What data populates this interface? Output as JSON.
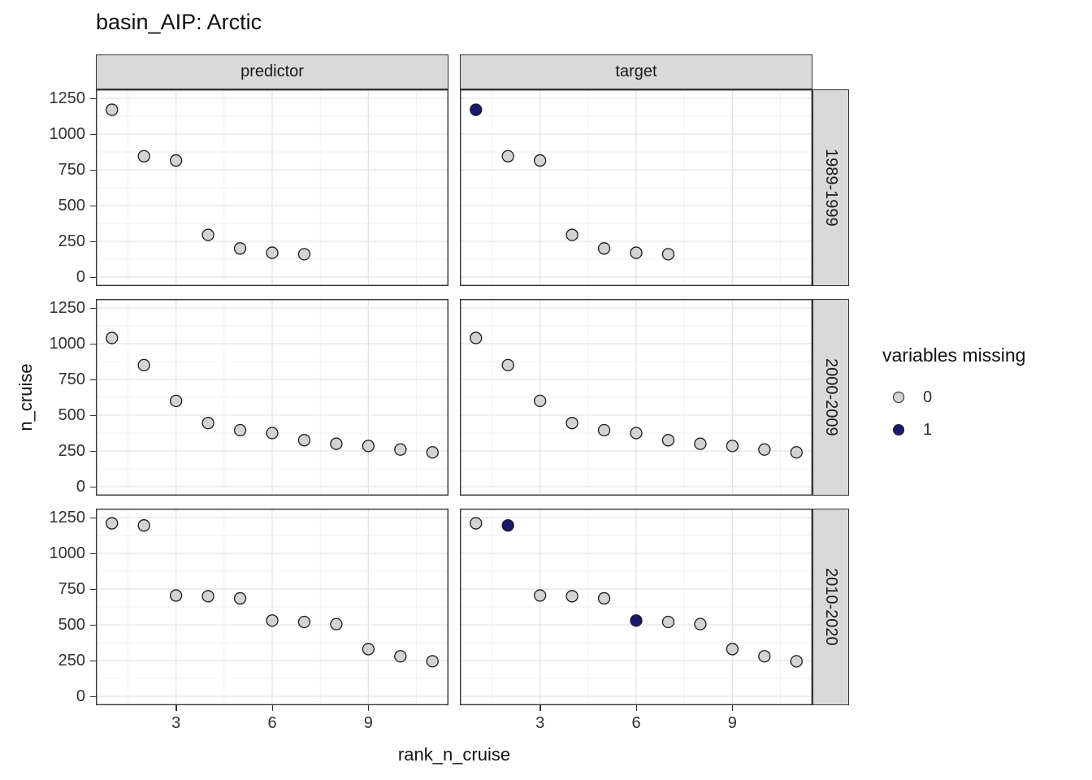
{
  "title": "basin_AIP: Arctic",
  "chart_data": {
    "type": "scatter",
    "title": "basin_AIP: Arctic",
    "xlabel": "rank_n_cruise",
    "ylabel": "n_cruise",
    "x_ticks": [
      3,
      6,
      9
    ],
    "y_ticks": [
      0,
      250,
      500,
      750,
      1000,
      1250
    ],
    "xlim": [
      0.5,
      11.5
    ],
    "ylim": [
      -62.5,
      1312.5
    ],
    "grid": true,
    "facets": {
      "cols": [
        "predictor",
        "target"
      ],
      "rows": [
        "1989-1999",
        "2000-2009",
        "2010-2020"
      ]
    },
    "legend": {
      "title": "variables missing",
      "position": "right",
      "entries": [
        {
          "label": "0",
          "color": "#d3d3d3"
        },
        {
          "label": "1",
          "color": "#191970"
        }
      ]
    },
    "point_colors": {
      "0": "#d3d3d3",
      "1": "#191970"
    },
    "point_stroke": "#1a1a1a",
    "series": [
      {
        "col": "predictor",
        "row": "1989-1999",
        "points": [
          [
            1,
            1170,
            0
          ],
          [
            2,
            845,
            0
          ],
          [
            3,
            815,
            0
          ],
          [
            4,
            295,
            0
          ],
          [
            5,
            200,
            0
          ],
          [
            6,
            170,
            0
          ],
          [
            7,
            160,
            0
          ]
        ]
      },
      {
        "col": "target",
        "row": "1989-1999",
        "points": [
          [
            1,
            1170,
            1
          ],
          [
            2,
            845,
            0
          ],
          [
            3,
            815,
            0
          ],
          [
            4,
            295,
            0
          ],
          [
            5,
            200,
            0
          ],
          [
            6,
            170,
            0
          ],
          [
            7,
            160,
            0
          ]
        ]
      },
      {
        "col": "predictor",
        "row": "2000-2009",
        "points": [
          [
            1,
            1040,
            0
          ],
          [
            2,
            850,
            0
          ],
          [
            3,
            600,
            0
          ],
          [
            4,
            445,
            0
          ],
          [
            5,
            395,
            0
          ],
          [
            6,
            375,
            0
          ],
          [
            7,
            325,
            0
          ],
          [
            8,
            300,
            0
          ],
          [
            9,
            285,
            0
          ],
          [
            10,
            260,
            0
          ],
          [
            11,
            240,
            0
          ]
        ]
      },
      {
        "col": "target",
        "row": "2000-2009",
        "points": [
          [
            1,
            1040,
            0
          ],
          [
            2,
            850,
            0
          ],
          [
            3,
            600,
            0
          ],
          [
            4,
            445,
            0
          ],
          [
            5,
            395,
            0
          ],
          [
            6,
            375,
            0
          ],
          [
            7,
            325,
            0
          ],
          [
            8,
            300,
            0
          ],
          [
            9,
            285,
            0
          ],
          [
            10,
            260,
            0
          ],
          [
            11,
            240,
            0
          ]
        ]
      },
      {
        "col": "predictor",
        "row": "2010-2020",
        "points": [
          [
            1,
            1210,
            0
          ],
          [
            2,
            1195,
            0
          ],
          [
            3,
            705,
            0
          ],
          [
            4,
            700,
            0
          ],
          [
            5,
            685,
            0
          ],
          [
            6,
            530,
            0
          ],
          [
            7,
            520,
            0
          ],
          [
            8,
            505,
            0
          ],
          [
            9,
            330,
            0
          ],
          [
            10,
            280,
            0
          ],
          [
            11,
            245,
            0
          ]
        ]
      },
      {
        "col": "target",
        "row": "2010-2020",
        "points": [
          [
            1,
            1210,
            0
          ],
          [
            2,
            1195,
            1
          ],
          [
            3,
            705,
            0
          ],
          [
            4,
            700,
            0
          ],
          [
            5,
            685,
            0
          ],
          [
            6,
            530,
            1
          ],
          [
            7,
            520,
            0
          ],
          [
            8,
            505,
            0
          ],
          [
            9,
            330,
            0
          ],
          [
            10,
            280,
            0
          ],
          [
            11,
            245,
            0
          ]
        ]
      }
    ]
  }
}
